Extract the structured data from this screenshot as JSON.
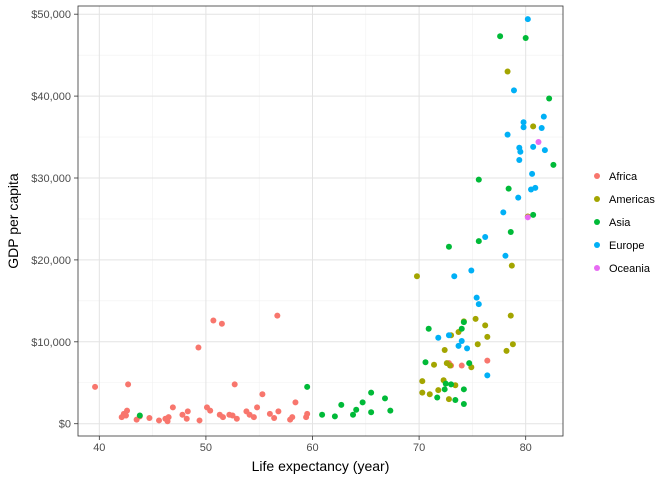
{
  "chart_data": {
    "type": "scatter",
    "title": "",
    "xlabel": "Life expectancy (year)",
    "ylabel": "GDP per capita",
    "xlim": [
      38,
      83.5
    ],
    "ylim": [
      -1500,
      51000
    ],
    "x_ticks": [
      40,
      50,
      60,
      70,
      80
    ],
    "y_ticks": [
      0,
      10000,
      20000,
      30000,
      40000,
      50000
    ],
    "y_tick_labels": [
      "$0",
      "$10,000",
      "$20,000",
      "$30,000",
      "$40,000",
      "$50,000"
    ],
    "grid": true,
    "legend_position": "right",
    "series": [
      {
        "name": "Africa",
        "color": "#F8766D",
        "points": [
          [
            39.6,
            4500
          ],
          [
            42.1,
            800
          ],
          [
            42.3,
            1200
          ],
          [
            42.5,
            1000
          ],
          [
            42.6,
            1600
          ],
          [
            42.7,
            4800
          ],
          [
            43.5,
            500
          ],
          [
            43.8,
            900
          ],
          [
            44.7,
            700
          ],
          [
            45.6,
            400
          ],
          [
            46.2,
            600
          ],
          [
            46.4,
            300
          ],
          [
            46.5,
            800
          ],
          [
            46.9,
            2000
          ],
          [
            47.8,
            1100
          ],
          [
            48.2,
            600
          ],
          [
            48.3,
            1500
          ],
          [
            49.3,
            9300
          ],
          [
            49.4,
            400
          ],
          [
            50.1,
            2000
          ],
          [
            50.4,
            1600
          ],
          [
            50.7,
            12600
          ],
          [
            51.3,
            1100
          ],
          [
            51.5,
            12200
          ],
          [
            51.6,
            800
          ],
          [
            52.2,
            1100
          ],
          [
            52.5,
            1000
          ],
          [
            52.7,
            4800
          ],
          [
            52.9,
            600
          ],
          [
            53.8,
            1500
          ],
          [
            54.1,
            1100
          ],
          [
            54.5,
            800
          ],
          [
            54.8,
            2000
          ],
          [
            55.3,
            3600
          ],
          [
            56.0,
            1200
          ],
          [
            56.4,
            700
          ],
          [
            56.7,
            13200
          ],
          [
            56.8,
            1500
          ],
          [
            57.9,
            500
          ],
          [
            58.1,
            800
          ],
          [
            58.4,
            2600
          ],
          [
            59.4,
            800
          ],
          [
            59.5,
            1200
          ],
          [
            72.8,
            7400
          ],
          [
            73.0,
            7100
          ],
          [
            74.0,
            7100
          ],
          [
            76.4,
            7700
          ]
        ]
      },
      {
        "name": "Americas",
        "color": "#A3A500",
        "points": [
          [
            69.8,
            18000
          ],
          [
            70.3,
            3800
          ],
          [
            70.3,
            5200
          ],
          [
            71.0,
            3600
          ],
          [
            71.4,
            7200
          ],
          [
            71.8,
            4100
          ],
          [
            72.3,
            5300
          ],
          [
            72.4,
            9000
          ],
          [
            72.6,
            7400
          ],
          [
            72.8,
            3000
          ],
          [
            72.9,
            7100
          ],
          [
            73.0,
            10800
          ],
          [
            73.4,
            4700
          ],
          [
            73.7,
            11200
          ],
          [
            74.2,
            12500
          ],
          [
            74.9,
            6900
          ],
          [
            75.3,
            12800
          ],
          [
            75.5,
            9700
          ],
          [
            76.2,
            12000
          ],
          [
            76.4,
            10600
          ],
          [
            78.2,
            8900
          ],
          [
            78.3,
            43000
          ],
          [
            78.6,
            13200
          ],
          [
            78.7,
            19300
          ],
          [
            78.8,
            9700
          ],
          [
            80.2,
            25300
          ],
          [
            80.7,
            36300
          ]
        ]
      },
      {
        "name": "Asia",
        "color": "#00BA38",
        "points": [
          [
            43.8,
            1000
          ],
          [
            59.5,
            4500
          ],
          [
            60.9,
            1100
          ],
          [
            62.1,
            900
          ],
          [
            62.7,
            2300
          ],
          [
            63.8,
            1100
          ],
          [
            64.1,
            1700
          ],
          [
            64.7,
            2600
          ],
          [
            65.5,
            1400
          ],
          [
            65.5,
            3800
          ],
          [
            66.8,
            3100
          ],
          [
            67.3,
            1600
          ],
          [
            70.6,
            7500
          ],
          [
            70.9,
            11600
          ],
          [
            71.7,
            3200
          ],
          [
            72.4,
            4200
          ],
          [
            72.5,
            4900
          ],
          [
            72.8,
            21600
          ],
          [
            73.0,
            4800
          ],
          [
            73.4,
            2900
          ],
          [
            74.0,
            11600
          ],
          [
            74.2,
            2400
          ],
          [
            74.2,
            4200
          ],
          [
            74.2,
            12400
          ],
          [
            74.7,
            7400
          ],
          [
            75.6,
            22300
          ],
          [
            75.6,
            29800
          ],
          [
            77.6,
            47300
          ],
          [
            78.4,
            28700
          ],
          [
            78.6,
            23400
          ],
          [
            80.0,
            47100
          ],
          [
            80.7,
            25500
          ],
          [
            82.2,
            39700
          ],
          [
            82.6,
            31600
          ]
        ]
      },
      {
        "name": "Europe",
        "color": "#00B0F6",
        "points": [
          [
            71.8,
            10500
          ],
          [
            72.8,
            10800
          ],
          [
            73.3,
            18000
          ],
          [
            73.7,
            9500
          ],
          [
            74.0,
            10100
          ],
          [
            74.5,
            9200
          ],
          [
            74.9,
            18700
          ],
          [
            75.4,
            15400
          ],
          [
            75.6,
            14600
          ],
          [
            76.2,
            22800
          ],
          [
            76.4,
            5900
          ],
          [
            77.9,
            25800
          ],
          [
            78.1,
            20500
          ],
          [
            78.3,
            35300
          ],
          [
            78.9,
            40700
          ],
          [
            79.3,
            27600
          ],
          [
            79.4,
            33700
          ],
          [
            79.4,
            32200
          ],
          [
            79.5,
            33200
          ],
          [
            79.8,
            36800
          ],
          [
            79.8,
            36200
          ],
          [
            80.2,
            49400
          ],
          [
            80.5,
            28600
          ],
          [
            80.6,
            30500
          ],
          [
            80.7,
            33800
          ],
          [
            80.9,
            28800
          ],
          [
            81.5,
            36100
          ],
          [
            81.7,
            37500
          ],
          [
            81.8,
            33400
          ]
        ]
      },
      {
        "name": "Oceania",
        "color": "#E76BF3",
        "points": [
          [
            80.2,
            25200
          ],
          [
            81.2,
            34400
          ]
        ]
      }
    ]
  }
}
